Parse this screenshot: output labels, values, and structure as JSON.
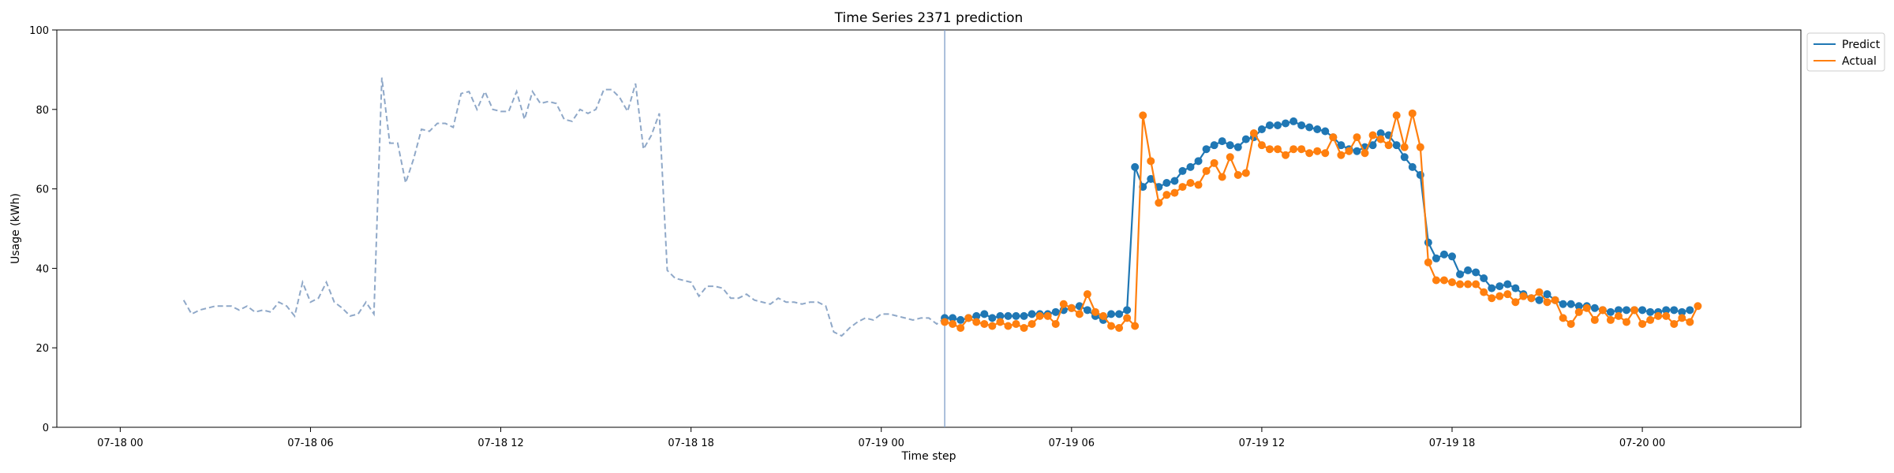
{
  "chart_data": {
    "type": "line",
    "title": "Time Series 2371 prediction",
    "xlabel": "Time step",
    "ylabel": "Usage (kWh)",
    "ylim": [
      0,
      100
    ],
    "yticks": [
      0,
      20,
      40,
      60,
      80,
      100
    ],
    "xlim": [
      "07-18 00 -02:00",
      "07-20 05:00"
    ],
    "xticks": [
      "07-18 00",
      "07-18 06",
      "07-18 12",
      "07-18 18",
      "07-19 00",
      "07-19 06",
      "07-19 12",
      "07-19 18",
      "07-20 00"
    ],
    "x_start": "07-18 02:00",
    "step_minutes": 15,
    "history_step_hours": 0.25,
    "history_start": "07-18 02:00",
    "history": [
      32,
      28.5,
      29.5,
      30,
      30.5,
      30.5,
      30.5,
      29.5,
      30.5,
      29,
      29.5,
      29,
      31.5,
      30.5,
      28,
      36.5,
      31.5,
      32.5,
      36.5,
      31.5,
      30,
      28,
      28.5,
      31.5,
      28.5,
      88,
      71.5,
      71.5,
      61.5,
      67.5,
      75,
      74.5,
      76.5,
      76.5,
      75.5,
      84,
      84.5,
      80,
      84.5,
      80,
      79.5,
      79.5,
      84.5,
      77.5,
      84.5,
      81.5,
      82,
      81.5,
      77.5,
      77,
      80,
      79,
      80,
      85,
      85,
      83,
      79.5,
      86.5,
      70,
      73.5,
      79,
      39.5,
      37.5,
      37,
      36.5,
      33,
      35.5,
      35.5,
      35,
      32.5,
      32.5,
      33.5,
      32,
      31.5,
      31,
      32.5,
      31.5,
      31.5,
      31,
      31.5,
      31.5,
      30.5,
      24,
      23,
      25,
      26.5,
      27.5,
      27,
      28.5,
      28.5,
      28,
      27.5,
      27,
      27.5,
      27.5,
      26,
      27.5,
      27.5
    ],
    "forecast_start": "07-19 02:00",
    "series": [
      {
        "name": "Predict",
        "color": "#1f77b4",
        "values": [
          27.5,
          27.5,
          27,
          27.5,
          28,
          28.5,
          27.5,
          28,
          28,
          28,
          28,
          28.5,
          28.5,
          28.5,
          29,
          29.5,
          30,
          30.5,
          29.5,
          28,
          27,
          28.5,
          28.5,
          29.5,
          65.5,
          60.5,
          62.5,
          60.5,
          61.5,
          62,
          64.5,
          65.5,
          67,
          70,
          71,
          72,
          71,
          70.5,
          72.5,
          73,
          75,
          76,
          76,
          76.5,
          77,
          76,
          75.5,
          75,
          74.5,
          73,
          71,
          70,
          69.5,
          70.5,
          71,
          74,
          73.5,
          71,
          68,
          65.5,
          63.5,
          46.5,
          42.5,
          43.5,
          43,
          38.5,
          39.5,
          39,
          37.5,
          35,
          35.5,
          36,
          35,
          33.5,
          32.5,
          32,
          33.5,
          32,
          31,
          31,
          30.5,
          30.5,
          30,
          29.5,
          29,
          29.5,
          29.5,
          29.5,
          29.5,
          29,
          29,
          29.5,
          29.5,
          29,
          29.5
        ]
      },
      {
        "name": "Actual",
        "color": "#ff7f0e",
        "values": [
          26.5,
          26,
          25,
          27.5,
          26.5,
          26,
          25.5,
          26.5,
          25.5,
          26,
          25,
          26,
          28,
          28,
          26,
          31,
          30,
          28.5,
          33.5,
          29,
          28,
          25.5,
          25,
          27.5,
          25.5,
          78.5,
          67,
          56.5,
          58.5,
          59,
          60.5,
          61.5,
          61,
          64.5,
          66.5,
          63,
          68,
          63.5,
          64,
          74,
          71,
          70,
          70,
          68.5,
          70,
          70,
          69,
          69.5,
          69,
          73,
          68.5,
          69.5,
          73,
          69,
          73.5,
          72.5,
          71,
          78.5,
          70.5,
          79,
          70.5,
          41.5,
          37,
          37,
          36.5,
          36,
          36,
          36,
          34,
          32.5,
          33,
          33.5,
          31.5,
          33,
          32.5,
          34,
          31.5,
          32,
          27.5,
          26,
          29,
          30,
          27,
          29.5,
          27,
          28,
          26.5,
          29.5,
          26,
          27,
          28,
          28,
          26,
          27.5,
          26.5,
          30.5
        ]
      }
    ],
    "legend": {
      "position": "top-right outside"
    },
    "grid": false
  }
}
